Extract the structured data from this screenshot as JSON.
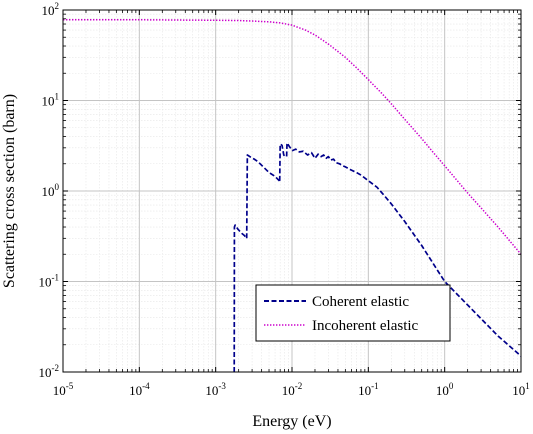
{
  "chart_data": {
    "type": "line",
    "xlabel": "Energy (eV)",
    "ylabel": "Scattering cross section (barn)",
    "xscale": "log",
    "yscale": "log",
    "xlim": [
      1e-05,
      10
    ],
    "ylim": [
      0.01,
      100
    ],
    "grid": true,
    "legend_position": "bottom-right",
    "x_ticks": [
      {
        "base": "10",
        "exp": "-5",
        "value": 1e-05
      },
      {
        "base": "10",
        "exp": "-4",
        "value": 0.0001
      },
      {
        "base": "10",
        "exp": "-3",
        "value": 0.001
      },
      {
        "base": "10",
        "exp": "-2",
        "value": 0.01
      },
      {
        "base": "10",
        "exp": "-1",
        "value": 0.1
      },
      {
        "base": "10",
        "exp": "0",
        "value": 1
      },
      {
        "base": "10",
        "exp": "1",
        "value": 10
      }
    ],
    "y_ticks": [
      {
        "base": "10",
        "exp": "-2",
        "value": 0.01
      },
      {
        "base": "10",
        "exp": "-1",
        "value": 0.1
      },
      {
        "base": "10",
        "exp": "0",
        "value": 1
      },
      {
        "base": "10",
        "exp": "1",
        "value": 10
      },
      {
        "base": "10",
        "exp": "2",
        "value": 100
      }
    ],
    "series": [
      {
        "name": "Coherent elastic",
        "color": "#00008B",
        "style": "dashed",
        "x": [
          0.00175,
          0.00176,
          0.0018,
          0.00195,
          0.0022,
          0.0024,
          0.0025,
          0.00255,
          0.0026,
          0.0028,
          0.0032,
          0.0036,
          0.0042,
          0.005,
          0.006,
          0.0068,
          0.0069,
          0.007,
          0.0074,
          0.0078,
          0.0082,
          0.0085,
          0.0086,
          0.0087,
          0.009,
          0.0095,
          0.0102,
          0.0112,
          0.0125,
          0.014,
          0.016,
          0.018,
          0.02,
          0.022,
          0.024,
          0.026,
          0.028,
          0.03,
          0.032,
          0.035,
          0.038,
          0.042,
          0.046,
          0.05,
          0.06,
          0.07,
          0.08,
          0.1,
          0.13,
          0.16,
          0.2,
          0.3,
          0.5,
          0.7,
          1,
          2,
          5,
          10
        ],
        "y": [
          0.01,
          0.4,
          0.42,
          0.38,
          0.34,
          0.32,
          0.3,
          0.3,
          2.5,
          2.4,
          2.25,
          2.1,
          1.85,
          1.6,
          1.45,
          1.3,
          1.25,
          3.3,
          3.2,
          2.5,
          2.4,
          2.4,
          3.3,
          3.4,
          3.2,
          3.0,
          2.8,
          2.9,
          2.7,
          2.75,
          2.5,
          2.65,
          2.3,
          2.55,
          2.4,
          2.5,
          2.3,
          2.4,
          2.2,
          2.25,
          2.05,
          2.0,
          1.9,
          1.85,
          1.7,
          1.6,
          1.5,
          1.3,
          1.1,
          0.9,
          0.72,
          0.46,
          0.25,
          0.16,
          0.1,
          0.055,
          0.025,
          0.015
        ]
      },
      {
        "name": "Incoherent elastic",
        "color": "#CC00CC",
        "style": "dotted",
        "x": [
          1e-05,
          3e-05,
          0.0001,
          0.0003,
          0.001,
          0.002,
          0.003,
          0.005,
          0.007,
          0.01,
          0.015,
          0.02,
          0.03,
          0.05,
          0.07,
          0.1,
          0.15,
          0.2,
          0.3,
          0.5,
          0.7,
          1,
          2,
          3,
          5,
          10
        ],
        "y": [
          78,
          78,
          78,
          77.5,
          77,
          76.5,
          75.5,
          74,
          72,
          68,
          60,
          53,
          42,
          30,
          23,
          17,
          12,
          9.2,
          6.2,
          3.8,
          2.7,
          1.9,
          0.95,
          0.65,
          0.4,
          0.2
        ]
      }
    ]
  }
}
